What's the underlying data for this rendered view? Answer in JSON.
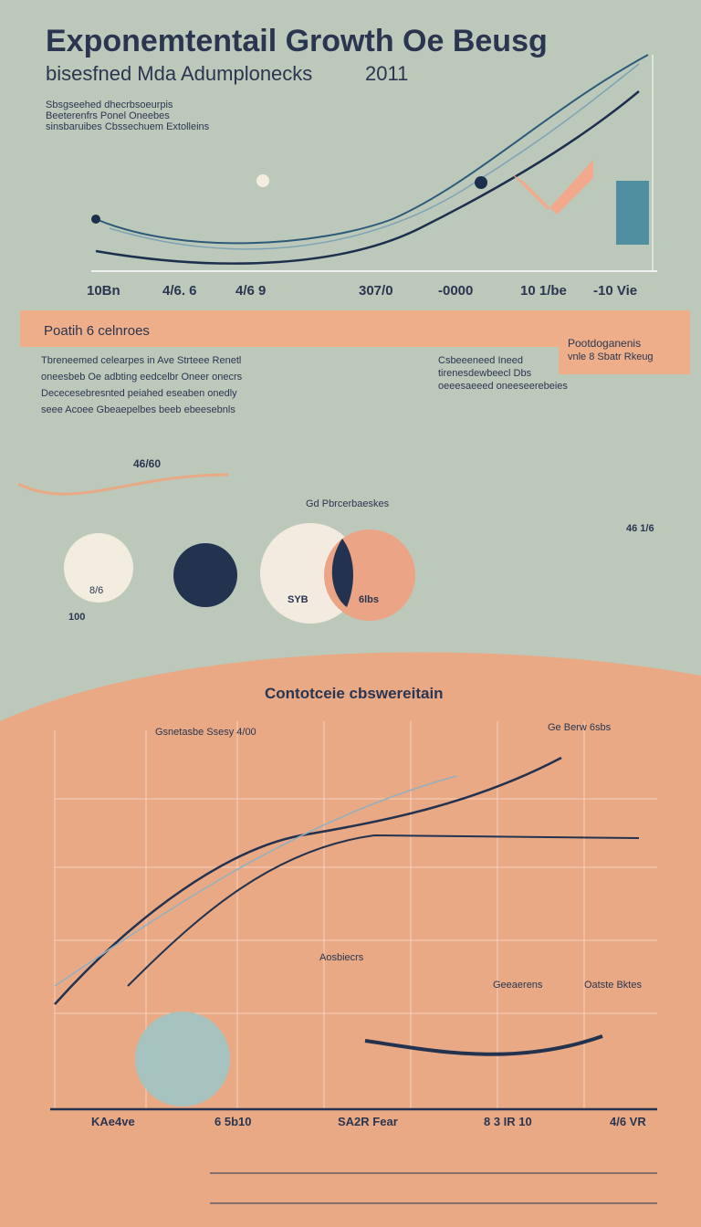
{
  "header": {
    "title": "Exponemtentail Growth Oe Beusg",
    "subtitle": "bisesfned Mda Adumplonecks",
    "year": "2011"
  },
  "top_chart": {
    "notes": [
      "Sbsgseehed dhecrbsoeurpis",
      "Beeterenfrs Ponel Oneebes",
      "sinsbaruibes Cbssechuem Extolleins"
    ],
    "x_labels": [
      "10Bn",
      "4/6. 6",
      "4/6 9",
      "307/0",
      "-0000",
      "10 1/be",
      "-10 Vie"
    ]
  },
  "banner": {
    "left": "Poatih 6 celnroes",
    "right_title": "Pootdoganenis",
    "right_sub": "vnle 8 Sbatr Rkeug"
  },
  "middle": {
    "text_left": [
      "Tbreneemed celearpes in Ave Strteee Renetl",
      "oneesbeb Oe adbting eedcelbr Oneer onecrs",
      "Dececesebresnted peiahed eseaben onedly",
      "seee Acoee Gbeaepelbes beeb ebeesebnls"
    ],
    "text_right": [
      "Csbeeeneed Ineed",
      "tirenesdewbeecl Dbs",
      "oeeesaeeed oneeseerebeies"
    ],
    "value_a": "46/60",
    "value_b": "46 1/6",
    "pie_label": "Gd Pbrcerbaeskes",
    "pie_values": [
      "100",
      "8/6",
      "SYB",
      "6lbs"
    ]
  },
  "bottom": {
    "title": "Contotceie cbswereitain",
    "x_labels": [
      "KAe4ve",
      "6 5b10",
      "SA2R Fear",
      "8 3 IR 10",
      "4/6 VR"
    ],
    "notes": [
      "Gsnetasbe Ssesy 4/00",
      "Ge Berw 6sbs",
      "Oatste Bktes",
      "Geeaerens",
      "Aosbiecrs"
    ]
  }
}
